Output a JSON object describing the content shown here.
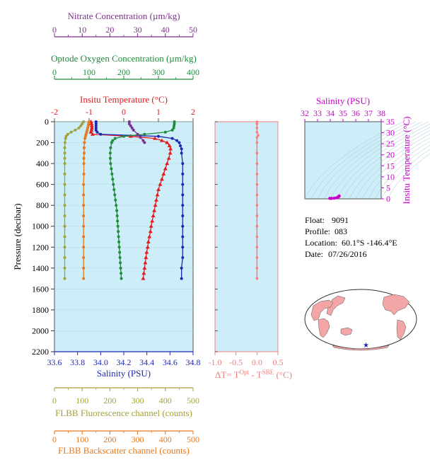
{
  "chart_data": [
    {
      "type": "line",
      "panel": "main-profile",
      "y_axis": {
        "label": "Pressure (decibar)",
        "range": [
          0,
          2200
        ],
        "inverted": true,
        "ticks": [
          0,
          200,
          400,
          600,
          800,
          1000,
          1200,
          1400,
          1600,
          1800,
          2000,
          2200
        ]
      },
      "x_axes": {
        "nitrate": {
          "label": "Nitrate Concentration (µm/kg)",
          "range": [
            0,
            50
          ],
          "ticks": [
            0,
            10,
            20,
            30,
            40,
            50
          ],
          "color": "#7f2f8f"
        },
        "oxygen": {
          "label": "Optode Oxygen Concentration (µm/kg)",
          "range": [
            0,
            400
          ],
          "ticks": [
            0,
            100,
            200,
            300,
            400
          ],
          "color": "#1e8c3a"
        },
        "temperature": {
          "label": "Insitu Temperature (°C)",
          "range": [
            -2,
            2
          ],
          "ticks": [
            -2,
            -1,
            0,
            1,
            2
          ],
          "color": "#e41a1c"
        },
        "salinity": {
          "label": "Salinity (PSU)",
          "range": [
            33.6,
            34.8
          ],
          "ticks": [
            33.6,
            33.8,
            34.0,
            34.2,
            34.4,
            34.6,
            34.8
          ],
          "color": "#1f28b4"
        },
        "fluorescence": {
          "label": "FLBB Fluorescence channel (counts)",
          "range": [
            0,
            500
          ],
          "ticks": [
            0,
            100,
            200,
            300,
            400,
            500
          ],
          "color": "#a3a13a"
        },
        "backscatter": {
          "label": "FLBB Backscatter channel (counts)",
          "range": [
            0,
            500
          ],
          "ticks": [
            0,
            100,
            200,
            300,
            400,
            500
          ],
          "color": "#e6781e"
        }
      },
      "series": [
        {
          "key": "temperature",
          "color": "#e41a1c",
          "marker": "triangle",
          "points": [
            [
              0,
              -0.95
            ],
            [
              20,
              -0.93
            ],
            [
              40,
              -0.92
            ],
            [
              60,
              -0.92
            ],
            [
              80,
              -0.93
            ],
            [
              100,
              -0.95
            ],
            [
              120,
              -0.9
            ],
            [
              140,
              0.2
            ],
            [
              160,
              0.9
            ],
            [
              180,
              1.1
            ],
            [
              200,
              1.25
            ],
            [
              230,
              1.32
            ],
            [
              260,
              1.35
            ],
            [
              300,
              1.34
            ],
            [
              350,
              1.3
            ],
            [
              400,
              1.25
            ],
            [
              450,
              1.2
            ],
            [
              500,
              1.15
            ],
            [
              550,
              1.1
            ],
            [
              600,
              1.05
            ],
            [
              650,
              1.0
            ],
            [
              700,
              0.97
            ],
            [
              750,
              0.94
            ],
            [
              800,
              0.91
            ],
            [
              850,
              0.88
            ],
            [
              900,
              0.85
            ],
            [
              950,
              0.82
            ],
            [
              1000,
              0.79
            ],
            [
              1050,
              0.77
            ],
            [
              1100,
              0.74
            ],
            [
              1150,
              0.71
            ],
            [
              1200,
              0.69
            ],
            [
              1250,
              0.66
            ],
            [
              1300,
              0.64
            ],
            [
              1350,
              0.62
            ],
            [
              1400,
              0.6
            ],
            [
              1450,
              0.58
            ],
            [
              1500,
              0.56
            ]
          ]
        },
        {
          "key": "salinity",
          "color": "#1f28b4",
          "marker": "circle",
          "points": [
            [
              0,
              33.96
            ],
            [
              20,
              33.96
            ],
            [
              40,
              33.96
            ],
            [
              60,
              33.96
            ],
            [
              80,
              33.96
            ],
            [
              100,
              33.97
            ],
            [
              120,
              34.0
            ],
            [
              140,
              34.5
            ],
            [
              160,
              34.62
            ],
            [
              180,
              34.66
            ],
            [
              200,
              34.68
            ],
            [
              230,
              34.69
            ],
            [
              260,
              34.7
            ],
            [
              300,
              34.7
            ],
            [
              400,
              34.71
            ],
            [
              500,
              34.71
            ],
            [
              600,
              34.71
            ],
            [
              700,
              34.71
            ],
            [
              800,
              34.71
            ],
            [
              900,
              34.71
            ],
            [
              1000,
              34.71
            ],
            [
              1100,
              34.71
            ],
            [
              1200,
              34.71
            ],
            [
              1300,
              34.71
            ],
            [
              1400,
              34.7
            ],
            [
              1500,
              34.7
            ]
          ]
        },
        {
          "key": "oxygen",
          "color": "#1e8c3a",
          "marker": "circle",
          "points": [
            [
              0,
              346
            ],
            [
              20,
              346
            ],
            [
              40,
              345
            ],
            [
              60,
              344
            ],
            [
              80,
              340
            ],
            [
              100,
              320
            ],
            [
              120,
              260
            ],
            [
              140,
              200
            ],
            [
              160,
              175
            ],
            [
              180,
              168
            ],
            [
              200,
              165
            ],
            [
              250,
              162
            ],
            [
              300,
              161
            ],
            [
              350,
              161
            ],
            [
              400,
              162
            ],
            [
              450,
              164
            ],
            [
              500,
              166
            ],
            [
              550,
              168
            ],
            [
              600,
              170
            ],
            [
              650,
              172
            ],
            [
              700,
              174
            ],
            [
              750,
              176
            ],
            [
              800,
              178
            ],
            [
              850,
              180
            ],
            [
              900,
              181
            ],
            [
              950,
              182
            ],
            [
              1000,
              183
            ],
            [
              1050,
              184
            ],
            [
              1100,
              185
            ],
            [
              1150,
              186
            ],
            [
              1200,
              187
            ],
            [
              1250,
              188
            ],
            [
              1300,
              189
            ],
            [
              1350,
              190
            ],
            [
              1400,
              191
            ],
            [
              1450,
              192
            ],
            [
              1500,
              193
            ]
          ]
        },
        {
          "key": "nitrate",
          "color": "#7f2f8f",
          "marker": "circle",
          "points": [
            [
              0,
              27
            ],
            [
              20,
              27
            ],
            [
              40,
              27.5
            ],
            [
              60,
              28
            ],
            [
              80,
              28.5
            ],
            [
              120,
              30
            ],
            [
              150,
              31
            ],
            [
              180,
              32
            ],
            [
              200,
              32.5
            ]
          ]
        },
        {
          "key": "fluorescence",
          "color": "#a3a13a",
          "marker": "circle",
          "points": [
            [
              0,
              105
            ],
            [
              20,
              100
            ],
            [
              40,
              95
            ],
            [
              60,
              88
            ],
            [
              80,
              75
            ],
            [
              100,
              60
            ],
            [
              120,
              48
            ],
            [
              140,
              42
            ],
            [
              160,
              40
            ],
            [
              200,
              38
            ],
            [
              250,
              37
            ],
            [
              300,
              37
            ],
            [
              350,
              37
            ],
            [
              400,
              37
            ],
            [
              500,
              37
            ],
            [
              600,
              37
            ],
            [
              700,
              37
            ],
            [
              800,
              37
            ],
            [
              900,
              37
            ],
            [
              1000,
              37
            ],
            [
              1100,
              37
            ],
            [
              1200,
              37
            ],
            [
              1300,
              37
            ],
            [
              1400,
              37
            ],
            [
              1500,
              37
            ]
          ]
        },
        {
          "key": "backscatter",
          "color": "#e6781e",
          "marker": "circle",
          "points": [
            [
              0,
              125
            ],
            [
              20,
              123
            ],
            [
              40,
              122
            ],
            [
              60,
              120
            ],
            [
              80,
              118
            ],
            [
              100,
              116
            ],
            [
              120,
              114
            ],
            [
              140,
              112
            ],
            [
              160,
              110
            ],
            [
              200,
              108
            ],
            [
              250,
              107
            ],
            [
              300,
              107
            ],
            [
              350,
              106
            ],
            [
              400,
              106
            ],
            [
              500,
              106
            ],
            [
              600,
              105
            ],
            [
              700,
              105
            ],
            [
              800,
              105
            ],
            [
              900,
              105
            ],
            [
              1000,
              105
            ],
            [
              1100,
              105
            ],
            [
              1200,
              105
            ],
            [
              1300,
              105
            ],
            [
              1400,
              105
            ],
            [
              1500,
              105
            ]
          ]
        }
      ]
    },
    {
      "type": "line",
      "panel": "delta-t",
      "xlabel_parts": [
        "ΔT= T",
        "Opt",
        " - T",
        "SBE",
        " (°C)"
      ],
      "x_range": [
        -1.0,
        0.5
      ],
      "x_ticks": [
        "-1.0",
        "-0.5",
        "0.0",
        "0.5"
      ],
      "y_range": [
        0,
        2200
      ],
      "color": "#f08080",
      "points": [
        [
          0,
          0.0
        ],
        [
          20,
          0.0
        ],
        [
          60,
          0.0
        ],
        [
          100,
          0.0
        ],
        [
          130,
          0.03
        ],
        [
          150,
          0.0
        ],
        [
          200,
          0.0
        ],
        [
          300,
          0.0
        ],
        [
          400,
          0.0
        ],
        [
          500,
          0.0
        ],
        [
          600,
          0.0
        ],
        [
          700,
          0.0
        ],
        [
          800,
          0.0
        ],
        [
          900,
          0.0
        ],
        [
          1000,
          0.0
        ],
        [
          1100,
          0.0
        ],
        [
          1200,
          0.0
        ],
        [
          1300,
          0.0
        ],
        [
          1400,
          0.0
        ],
        [
          1500,
          0.0
        ]
      ]
    },
    {
      "type": "scatter",
      "panel": "ts-diagram",
      "xlabel": "Salinity (PSU)",
      "ylabel": "Insitu Temperature (°C)",
      "x_range": [
        32,
        38
      ],
      "y_range": [
        0,
        35
      ],
      "x_ticks": [
        "32",
        "33",
        "34",
        "35",
        "36",
        "37",
        "38"
      ],
      "y_ticks": [
        "0",
        "5",
        "10",
        "15",
        "20",
        "25",
        "30",
        "35"
      ],
      "color": "#cc00cc",
      "points": [
        [
          34.6,
          0.7
        ],
        [
          34.65,
          1.0
        ],
        [
          34.68,
          1.2
        ],
        [
          34.7,
          1.3
        ],
        [
          34.5,
          0.5
        ],
        [
          34.3,
          0.3
        ],
        [
          34.1,
          0.0
        ],
        [
          33.96,
          -0.9
        ]
      ]
    }
  ],
  "info": {
    "float_label": "Float:",
    "float_value": "9091",
    "profile_label": "Profile:",
    "profile_value": "083",
    "location_label": "Location:",
    "location_value": "60.1°S  -146.4°E",
    "date_label": "Date:",
    "date_value": "07/26/2016"
  },
  "map": {
    "marker_color": "#1f28b4",
    "land_color": "#f4a6a6",
    "ocean_color": "#ffffff"
  }
}
